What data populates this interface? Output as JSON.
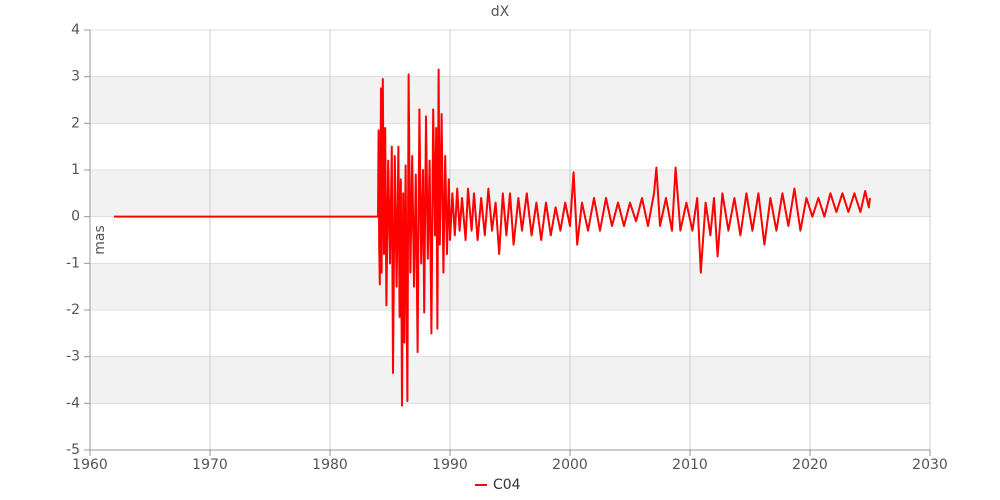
{
  "chart_data": {
    "type": "line",
    "title": "dX",
    "y_label": "mas",
    "x": [
      1962,
      1984,
      1984.05,
      1984.1,
      1984.15,
      1984.25,
      1984.3,
      1984.4,
      1984.5,
      1984.6,
      1984.7,
      1984.85,
      1985,
      1985.15,
      1985.25,
      1985.4,
      1985.55,
      1985.7,
      1985.8,
      1985.9,
      1986,
      1986.1,
      1986.2,
      1986.3,
      1986.45,
      1986.55,
      1986.7,
      1986.85,
      1987,
      1987.15,
      1987.3,
      1987.45,
      1987.6,
      1987.75,
      1987.85,
      1988,
      1988.15,
      1988.3,
      1988.45,
      1988.6,
      1988.75,
      1988.85,
      1988.95,
      1989.05,
      1989.15,
      1989.3,
      1989.45,
      1989.6,
      1989.75,
      1989.9,
      1990,
      1990.2,
      1990.4,
      1990.6,
      1990.8,
      1991,
      1991.3,
      1991.5,
      1991.8,
      1992,
      1992.3,
      1992.6,
      1992.9,
      1993.2,
      1993.5,
      1993.8,
      1994.1,
      1994.4,
      1994.7,
      1995,
      1995.3,
      1995.7,
      1996,
      1996.4,
      1996.8,
      1997.2,
      1997.6,
      1998,
      1998.4,
      1998.8,
      1999.2,
      1999.6,
      2000,
      2000.3,
      2000.6,
      2001,
      2001.5,
      2002,
      2002.5,
      2003,
      2003.5,
      2004,
      2004.5,
      2005,
      2005.5,
      2006,
      2006.5,
      2007,
      2007.2,
      2007.5,
      2008,
      2008.5,
      2008.8,
      2009.2,
      2009.7,
      2010.2,
      2010.6,
      2010.9,
      2011.3,
      2011.7,
      2012,
      2012.3,
      2012.7,
      2013.2,
      2013.7,
      2014.2,
      2014.7,
      2015.2,
      2015.7,
      2016.2,
      2016.7,
      2017.2,
      2017.7,
      2018.2,
      2018.7,
      2019.2,
      2019.7,
      2020.2,
      2020.7,
      2021.2,
      2021.7,
      2022.2,
      2022.7,
      2023.2,
      2023.7,
      2024.2,
      2024.6,
      2024.9,
      2025
    ],
    "series": [
      {
        "name": "C04",
        "color": "#ff0000",
        "values": [
          0,
          0,
          1.85,
          -0.6,
          -1.45,
          2.75,
          -1.2,
          2.95,
          -0.8,
          1.9,
          -1.9,
          1.2,
          -1,
          1.5,
          -3.35,
          1.3,
          -1.5,
          1.5,
          -2.15,
          0.8,
          -4.05,
          0.5,
          -2.7,
          1.1,
          -3.95,
          3.05,
          -1.2,
          1.3,
          -1.5,
          0.9,
          -2.9,
          2.3,
          -1,
          1,
          -2.05,
          2.15,
          -0.9,
          1.2,
          -2.5,
          2.3,
          -0.4,
          1.9,
          -2.4,
          3.15,
          -0.6,
          2.2,
          -1.2,
          1.3,
          -0.8,
          0.8,
          -0.5,
          0.5,
          -0.4,
          0.6,
          -0.3,
          0.4,
          -0.5,
          0.6,
          -0.3,
          0.5,
          -0.5,
          0.4,
          -0.4,
          0.6,
          -0.3,
          0.3,
          -0.8,
          0.5,
          -0.4,
          0.5,
          -0.6,
          0.4,
          -0.3,
          0.5,
          -0.4,
          0.3,
          -0.5,
          0.3,
          -0.4,
          0.2,
          -0.3,
          0.3,
          -0.2,
          0.95,
          -0.6,
          0.3,
          -0.3,
          0.4,
          -0.3,
          0.4,
          -0.2,
          0.3,
          -0.2,
          0.3,
          -0.1,
          0.4,
          -0.2,
          0.5,
          1.05,
          -0.2,
          0.4,
          -0.3,
          1.05,
          -0.3,
          0.3,
          -0.3,
          0.4,
          -1.2,
          0.3,
          -0.4,
          0.4,
          -0.85,
          0.5,
          -0.3,
          0.4,
          -0.4,
          0.5,
          -0.3,
          0.5,
          -0.6,
          0.4,
          -0.3,
          0.5,
          -0.2,
          0.6,
          -0.3,
          0.4,
          0,
          0.4,
          0,
          0.5,
          0.1,
          0.5,
          0.1,
          0.5,
          0.1,
          0.55,
          0.2,
          0.4
        ]
      }
    ],
    "xlim": [
      1960,
      2030
    ],
    "xticks": [
      1960,
      1970,
      1980,
      1990,
      2000,
      2010,
      2020,
      2030
    ],
    "ylim": [
      -5,
      4
    ],
    "yticks": [
      -5,
      -4,
      -3,
      -2,
      -1,
      0,
      1,
      2,
      3,
      4
    ],
    "grid": true,
    "legend": "bottom"
  }
}
